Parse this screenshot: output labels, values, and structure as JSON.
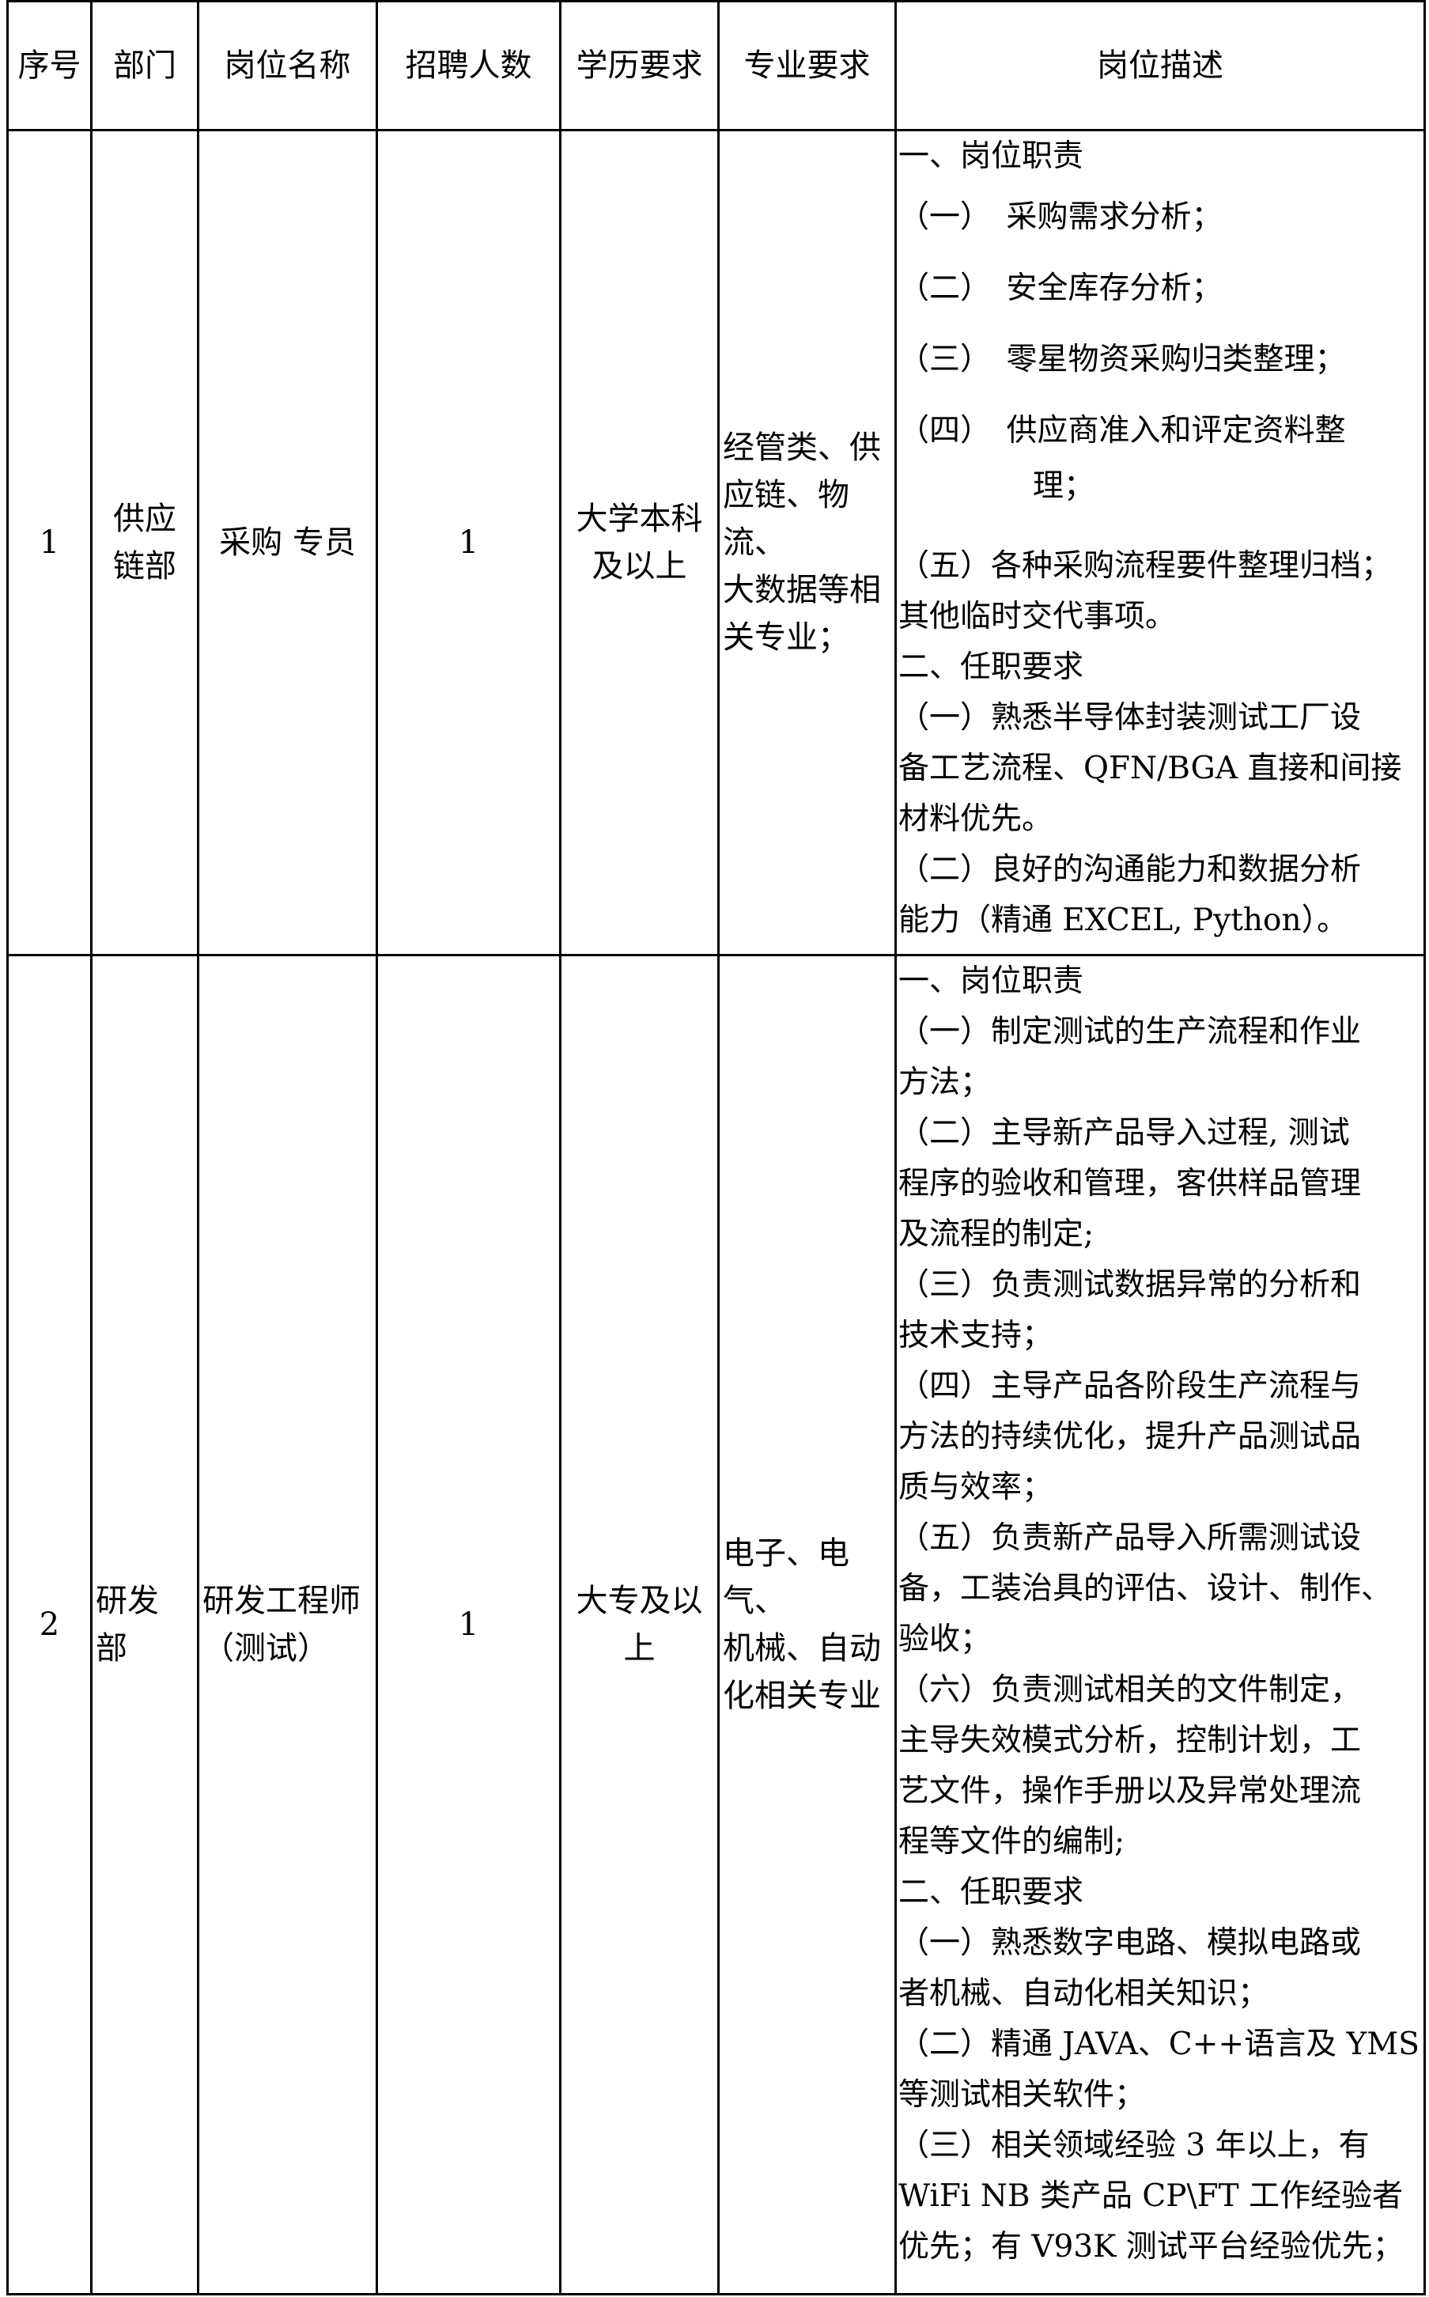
{
  "headers": [
    "序号",
    "部门",
    "岗位名称",
    "招聘人数",
    "学历要求",
    "专业要求",
    "岗位描述"
  ],
  "rows": [
    {
      "no": "1",
      "dept": "供应\n链部",
      "title": "采购 专员",
      "count": "1",
      "education": "大学本科\n及以上",
      "major": "经管类、供\n应链、物流、\n大数据等相\n关专业；",
      "description": [
        "一、岗位职责",
        "（一）　采购需求分析；",
        "（二）　安全库存分析；",
        "（三）　零星物资采购归类整理；",
        "（四）　供应商准入和评定资料整",
        "理；",
        "（五）各种采购流程要件整理归档；",
        "其他临时交代事项。",
        "二、任职要求",
        "（一）熟悉半导体封装测试工厂设",
        "备工艺流程、QFN/BGA 直接和间接",
        "材料优先。",
        "（二）良好的沟通能力和数据分析",
        "能力（精通 EXCEL, Python）。"
      ]
    },
    {
      "no": "2",
      "dept": "研发\n部",
      "title": "研发工程师\n（测试）",
      "count": "1",
      "education": "大专及以\n上",
      "major": "电子、电气、\n机械、自动\n化相关专业",
      "description": [
        "一、岗位职责",
        "（一）制定测试的生产流程和作业",
        "方法；",
        "（二）主导新产品导入过程, 测试",
        "程序的验收和管理，客供样品管理",
        "及流程的制定;",
        "（三）负责测试数据异常的分析和",
        "技术支持；",
        "（四）主导产品各阶段生产流程与",
        "方法的持续优化，提升产品测试品",
        "质与效率；",
        "（五）负责新产品导入所需测试设",
        "备，工装治具的评估、设计、制作、",
        "验收；",
        "（六）负责测试相关的文件制定，",
        "主导失效模式分析，控制计划，工",
        "艺文件，操作手册以及异常处理流",
        "程等文件的编制;",
        "二、任职要求",
        "（一）熟悉数字电路、模拟电路或",
        "者机械、自动化相关知识；",
        "（二）精通 JAVA、C++语言及 YMS",
        "等测试相关软件；",
        "（三）相关领域经验 3 年以上，有",
        "WiFi NB 类产品 CP\\FT 工作经验者",
        "优先；有 V93K 测试平台经验优先；"
      ]
    }
  ]
}
